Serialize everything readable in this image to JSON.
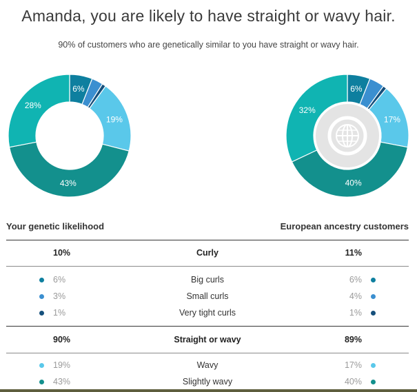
{
  "header": {
    "title": "Amanda, you are likely to have straight or wavy hair.",
    "subtitle": "90% of customers who are genetically similar to you have straight or wavy hair."
  },
  "colors": {
    "big_curls": "#0e7f9f",
    "small_curls": "#3b8fd0",
    "very_tight_curls": "#16507c",
    "wavy": "#5ac8ea",
    "slightly_wavy": "#13908d",
    "straight": "#10b4b2",
    "globe_bg": "#e4e4e4",
    "globe_ring": "#ffffff",
    "globe_line": "#ffffff"
  },
  "chart_data": [
    {
      "type": "pie",
      "slices": [
        {
          "category": "Big curls",
          "value": 6,
          "label": "6%",
          "color": "#0e7f9f"
        },
        {
          "category": "Small curls",
          "value": 3,
          "label": "",
          "color": "#3b8fd0"
        },
        {
          "category": "Very tight curls",
          "value": 1,
          "label": "",
          "color": "#16507c"
        },
        {
          "category": "Wavy",
          "value": 19,
          "label": "19%",
          "color": "#5ac8ea"
        },
        {
          "category": "Slightly wavy",
          "value": 43,
          "label": "43%",
          "color": "#13908d"
        },
        {
          "category": "Straight",
          "value": 28,
          "label": "28%",
          "color": "#10b4b2"
        }
      ],
      "center_icon": null
    },
    {
      "type": "pie",
      "slices": [
        {
          "category": "Big curls",
          "value": 6,
          "label": "6%",
          "color": "#0e7f9f"
        },
        {
          "category": "Small curls",
          "value": 4,
          "label": "",
          "color": "#3b8fd0"
        },
        {
          "category": "Very tight curls",
          "value": 1,
          "label": "",
          "color": "#16507c"
        },
        {
          "category": "Wavy",
          "value": 17,
          "label": "17%",
          "color": "#5ac8ea"
        },
        {
          "category": "Slightly wavy",
          "value": 40,
          "label": "40%",
          "color": "#13908d"
        },
        {
          "category": "Straight",
          "value": 32,
          "label": "32%",
          "color": "#10b4b2"
        }
      ],
      "center_icon": "globe-icon"
    }
  ],
  "table": {
    "left_heading": "Your genetic likelihood",
    "right_heading": "European ancestry customers",
    "groups": [
      {
        "name": "Curly",
        "left": "10%",
        "right": "11%",
        "rows": [
          {
            "name": "Big curls",
            "left": "6%",
            "right": "6%",
            "color": "#0e7f9f"
          },
          {
            "name": "Small curls",
            "left": "3%",
            "right": "4%",
            "color": "#3b8fd0"
          },
          {
            "name": "Very tight curls",
            "left": "1%",
            "right": "1%",
            "color": "#16507c"
          }
        ]
      },
      {
        "name": "Straight or wavy",
        "left": "90%",
        "right": "89%",
        "rows": [
          {
            "name": "Wavy",
            "left": "19%",
            "right": "17%",
            "color": "#5ac8ea"
          },
          {
            "name": "Slightly wavy",
            "left": "43%",
            "right": "40%",
            "color": "#13908d"
          }
        ]
      }
    ]
  }
}
